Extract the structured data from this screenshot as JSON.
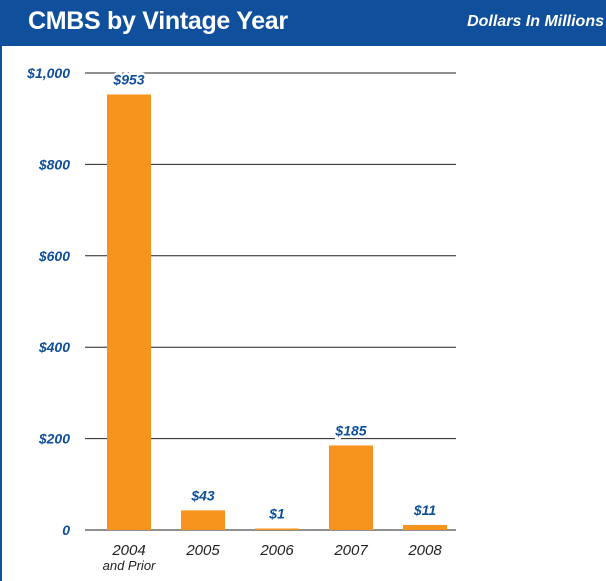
{
  "header": {
    "title": "CMBS by Vintage Year",
    "subtitle": "Dollars In Millions"
  },
  "colors": {
    "header_bg": "#0f4f9c",
    "bar": "#f7941d",
    "label": "#0f4f9c",
    "grid": "#222222"
  },
  "chart_data": {
    "type": "bar",
    "title": "CMBS by Vintage Year",
    "subtitle": "Dollars In Millions",
    "categories": [
      [
        "2004",
        "and Prior"
      ],
      [
        "2005"
      ],
      [
        "2006"
      ],
      [
        "2007"
      ],
      [
        "2008"
      ]
    ],
    "values": [
      953,
      43,
      1,
      185,
      11
    ],
    "data_labels": [
      "$953",
      "$43",
      "$1",
      "$185",
      "$11"
    ],
    "yticks": [
      0,
      200,
      400,
      600,
      800,
      1000
    ],
    "ytick_labels": [
      "0",
      "$200",
      "$400",
      "$600",
      "$800",
      "$1,000"
    ],
    "ylim": [
      0,
      1000
    ],
    "grid": true,
    "legend": "none"
  }
}
